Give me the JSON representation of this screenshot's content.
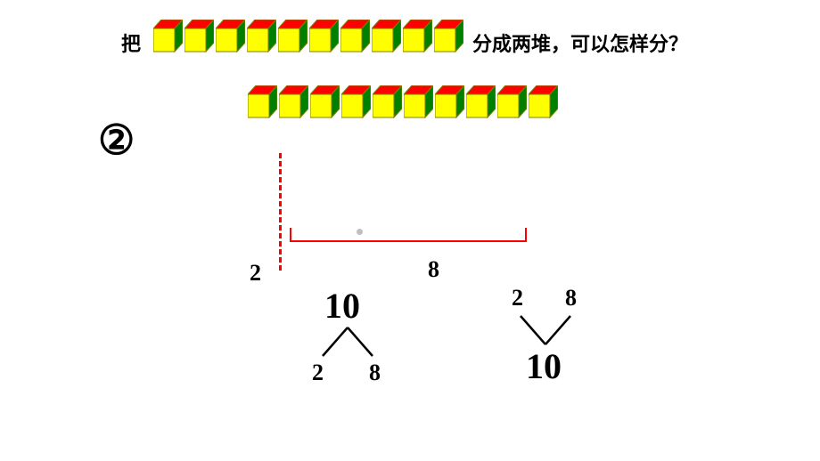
{
  "question": {
    "prefix": "把",
    "suffix": "分成两堆，可以怎样分？"
  },
  "step_marker": "②",
  "cubes": {
    "row1_count": 10,
    "row2_count": 10,
    "top_color": "#ff0000",
    "front_color": "#ffff00",
    "side_color": "#008000",
    "edge_color": "#808000"
  },
  "split": {
    "left_label": "2",
    "right_label": "8",
    "dashed_color": "#ff0000",
    "bracket_color": "#ff0000"
  },
  "number_bond_down": {
    "whole": "10",
    "part1": "2",
    "part2": "8"
  },
  "number_bond_up": {
    "part1": "2",
    "part2": "8",
    "whole": "10"
  },
  "colors": {
    "text": "#000000",
    "background": "#ffffff",
    "dot": "#bfbfbf"
  }
}
